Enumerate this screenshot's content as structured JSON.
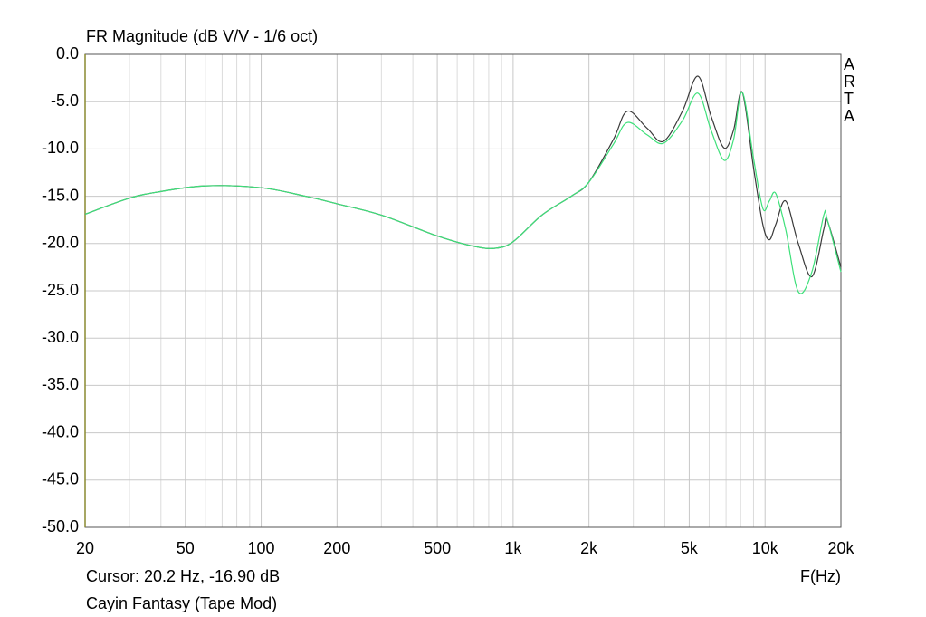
{
  "chart_data": {
    "type": "line",
    "title": "FR Magnitude (dB V/V - 1/6 oct)",
    "watermark": "ARTA",
    "cursor_text": "Cursor: 20.2 Hz, -16.90 dB",
    "xlabel": "F(Hz)",
    "caption": "Cayin Fantasy (Tape Mod)",
    "xlog": true,
    "grid": true,
    "xlim": [
      20,
      20000
    ],
    "xticks": [
      20,
      50,
      100,
      200,
      500,
      {
        "value": 1000,
        "label": "1k"
      },
      {
        "value": 2000,
        "label": "2k"
      },
      {
        "value": 5000,
        "label": "5k"
      },
      {
        "value": 10000,
        "label": "10k"
      },
      {
        "value": 20000,
        "label": "20k"
      }
    ],
    "x_minor_ticks": [
      30,
      40,
      60,
      70,
      80,
      90,
      300,
      400,
      600,
      700,
      800,
      900,
      3000,
      4000,
      6000,
      7000,
      8000,
      9000
    ],
    "ylim": [
      -50,
      0
    ],
    "yticks": [
      {
        "value": 0,
        "label": "0.0"
      },
      {
        "value": -5,
        "label": "-5.0"
      },
      {
        "value": -10,
        "label": "-10.0"
      },
      {
        "value": -15,
        "label": "-15.0"
      },
      {
        "value": -20,
        "label": "-20.0"
      },
      {
        "value": -25,
        "label": "-25.0"
      },
      {
        "value": -30,
        "label": "-30.0"
      },
      {
        "value": -35,
        "label": "-35.0"
      },
      {
        "value": -40,
        "label": "-40.0"
      },
      {
        "value": -45,
        "label": "-45.0"
      },
      {
        "value": -50,
        "label": "-50.0"
      }
    ],
    "x": [
      20,
      30,
      40,
      60,
      100,
      150,
      200,
      300,
      500,
      700,
      850,
      1000,
      1300,
      1700,
      2000,
      2500,
      2840,
      3400,
      3950,
      4700,
      5410,
      6100,
      6880,
      7500,
      8120,
      9000,
      9800,
      10400,
      11020,
      12070,
      13550,
      15340,
      17100,
      17670,
      20000
    ],
    "series": [
      {
        "color": "#3a3a3a",
        "values": [
          -16.9,
          -15.2,
          -14.5,
          -13.9,
          -14.1,
          -15.0,
          -15.8,
          -17.0,
          -19.2,
          -20.3,
          -20.5,
          -19.8,
          -17.0,
          -15.0,
          -13.5,
          -9.0,
          -6.0,
          -7.8,
          -9.2,
          -6.0,
          -2.3,
          -6.5,
          -9.9,
          -8.0,
          -4.0,
          -12.0,
          -18.0,
          -19.6,
          -18.0,
          -15.5,
          -20.0,
          -23.5,
          -18.5,
          -17.6,
          -22.5
        ]
      },
      {
        "color": "#3ee07a",
        "values": [
          -16.9,
          -15.2,
          -14.5,
          -13.9,
          -14.1,
          -15.0,
          -15.8,
          -17.0,
          -19.2,
          -20.3,
          -20.5,
          -19.8,
          -17.0,
          -15.0,
          -13.5,
          -9.5,
          -7.2,
          -8.5,
          -9.4,
          -7.0,
          -4.1,
          -8.0,
          -11.2,
          -9.0,
          -4.0,
          -11.0,
          -16.3,
          -15.5,
          -14.7,
          -18.5,
          -25.1,
          -23.0,
          -17.0,
          -17.5,
          -23.0
        ]
      }
    ]
  }
}
